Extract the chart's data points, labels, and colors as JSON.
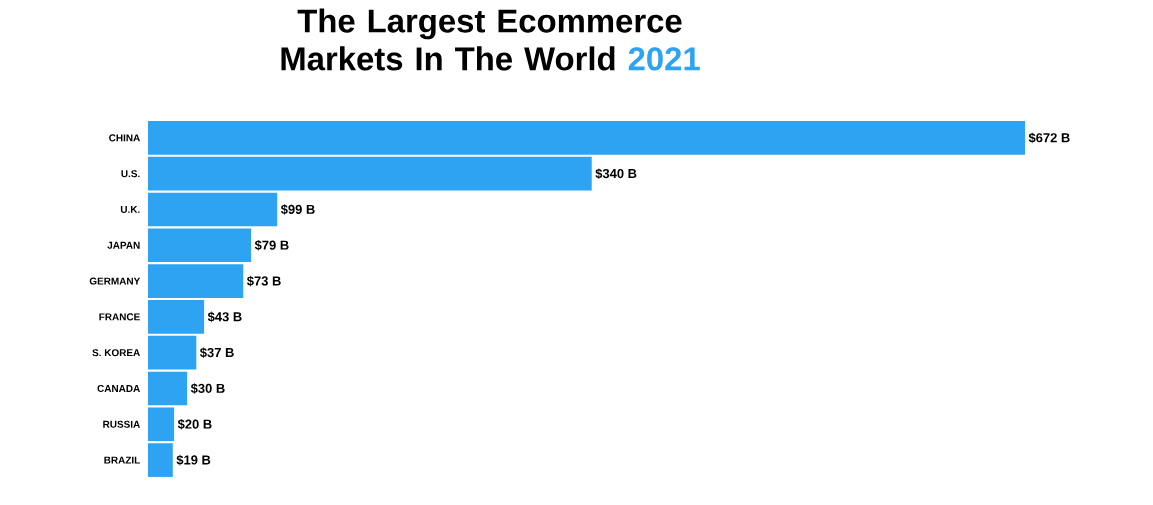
{
  "chart_data": {
    "type": "bar",
    "orientation": "horizontal",
    "title": "The Largest Ecommerce Markets In The World",
    "subtitle": "2021",
    "categories": [
      "CHINA",
      "U.S.",
      "U.K.",
      "JAPAN",
      "GERMANY",
      "FRANCE",
      "S. KOREA",
      "CANADA",
      "RUSSIA",
      "BRAZIL"
    ],
    "values": [
      672,
      340,
      99,
      79,
      73,
      43,
      37,
      30,
      20,
      19
    ],
    "value_labels": [
      "$672 B",
      "$340 B",
      "$99 B",
      "$79 B",
      "$73 B",
      "$43 B",
      "$37 B",
      "$30 B",
      "$20 B",
      "$19 B"
    ],
    "color": "#2ea3f2"
  }
}
